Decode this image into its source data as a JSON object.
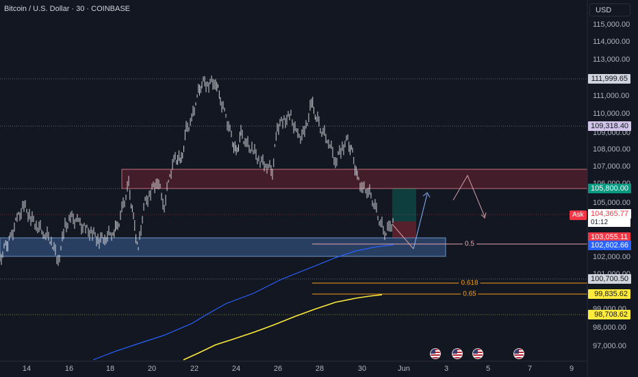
{
  "header": {
    "symbol_title": "Bitcoin / U.S. Dollar · 30 · COINBASE",
    "currency_button": "USD"
  },
  "price_axis": {
    "ticks": [
      "115,000.00",
      "114,000.00",
      "113,000.00",
      "111,000.00",
      "110,000.00",
      "109,000.00",
      "108,000.00",
      "107,000.00",
      "106,000.00",
      "105,000.00",
      "102,000.00",
      "101,000.00",
      "99,000.00",
      "98,000.00",
      "97,000.00"
    ]
  },
  "time_axis": {
    "ticks": [
      "14",
      "16",
      "18",
      "20",
      "22",
      "24",
      "26",
      "28",
      "30",
      "Jun",
      "3",
      "5",
      "7",
      "9"
    ]
  },
  "price_labels": {
    "high": "111,999.65",
    "level_1": "109,318.40",
    "resistance": "105,800.00",
    "last_price": "104,365.77",
    "countdown": "01:12",
    "bid": "103,055.11",
    "ma_value": "102,602.66",
    "support": "100,700.50",
    "fib_0_65_value": "99,835.62",
    "fib_low": "98,708.62"
  },
  "ask_tag": "Ask",
  "fib_labels": {
    "f05": "0.5",
    "f0618": "0.618",
    "f065": "0.65"
  },
  "colors": {
    "background": "#131722",
    "up": "#089981",
    "down": "#f23645",
    "ma_blue": "#2962ff",
    "ma_yellow": "#ffeb3b",
    "fib_orange": "#f7a21b",
    "supply_zone": "#f23645",
    "demand_zone": "#5b9cf6"
  },
  "events": [
    "us-flag-icon",
    "us-flag-icon",
    "us-flag-icon",
    "us-flag-icon"
  ]
}
